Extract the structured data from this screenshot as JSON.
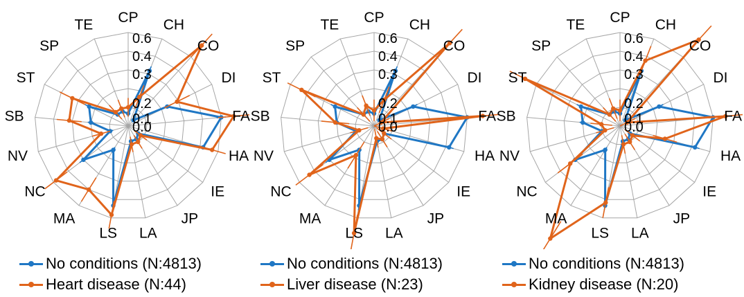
{
  "colors": {
    "baseline": "#1f77c4",
    "condition": "#e0641b",
    "grid": "#a6a6a6"
  },
  "chart_data": [
    {
      "type": "radar",
      "categories": [
        "CP",
        "CH",
        "CO",
        "DI",
        "FA",
        "HA",
        "IE",
        "JP",
        "LA",
        "LS",
        "MA",
        "NC",
        "NV",
        "SB",
        "ST",
        "SP",
        "TE"
      ],
      "radial_ticks": [
        "0.0",
        "0.1",
        "0.2",
        "0.3",
        "0.4",
        "0.6"
      ],
      "grid": true,
      "legend_position": "bottom",
      "series": [
        {
          "name": "No conditions (N:4813)",
          "values": [
            0.08,
            0.38,
            0.05,
            0.28,
            0.6,
            0.5,
            0.08,
            0.1,
            0.1,
            0.52,
            0.18,
            0.36,
            0.12,
            0.24,
            0.28,
            0.1,
            0.1
          ],
          "errors": [
            0.02,
            0.03,
            0.01,
            0.03,
            0.03,
            0.03,
            0.02,
            0.02,
            0.02,
            0.03,
            0.02,
            0.03,
            0.02,
            0.02,
            0.03,
            0.02,
            0.02
          ]
        },
        {
          "name": "Heart disease (N:44)",
          "values": [
            0.12,
            0.2,
            0.7,
            0.35,
            0.68,
            0.56,
            0.1,
            0.12,
            0.12,
            0.58,
            0.48,
            0.58,
            0.18,
            0.38,
            0.4,
            0.12,
            0.12
          ],
          "errors": [
            0.06,
            0.08,
            0.1,
            0.09,
            0.1,
            0.09,
            0.05,
            0.05,
            0.05,
            0.09,
            0.09,
            0.09,
            0.06,
            0.08,
            0.09,
            0.06,
            0.06
          ]
        }
      ]
    },
    {
      "type": "radar",
      "categories": [
        "CP",
        "CH",
        "CO",
        "DI",
        "FA",
        "HA",
        "IE",
        "JP",
        "LA",
        "LS",
        "MA",
        "NC",
        "NV",
        "SB",
        "ST",
        "SP",
        "TE"
      ],
      "radial_ticks": [
        "0.0",
        "0.1",
        "0.2",
        "0.3",
        "0.4",
        "0.6"
      ],
      "grid": true,
      "legend_position": "bottom",
      "series": [
        {
          "name": "No conditions (N:4813)",
          "values": [
            0.08,
            0.38,
            0.05,
            0.28,
            0.6,
            0.5,
            0.08,
            0.1,
            0.1,
            0.52,
            0.18,
            0.36,
            0.12,
            0.24,
            0.28,
            0.1,
            0.1
          ],
          "errors": [
            0.02,
            0.03,
            0.01,
            0.03,
            0.03,
            0.03,
            0.02,
            0.02,
            0.02,
            0.03,
            0.02,
            0.03,
            0.02,
            0.02,
            0.03,
            0.02,
            0.02
          ]
        },
        {
          "name": "Liver disease (N:23)",
          "values": [
            0.1,
            0.18,
            0.72,
            0.05,
            0.7,
            0.06,
            0.08,
            0.1,
            0.08,
            0.7,
            0.22,
            0.52,
            0.1,
            0.25,
            0.52,
            0.1,
            0.14
          ],
          "errors": [
            0.07,
            0.09,
            0.12,
            0.06,
            0.11,
            0.06,
            0.06,
            0.06,
            0.06,
            0.12,
            0.1,
            0.11,
            0.06,
            0.09,
            0.1,
            0.06,
            0.07
          ]
        }
      ]
    },
    {
      "type": "radar",
      "categories": [
        "CP",
        "CH",
        "CO",
        "DI",
        "FA",
        "HA",
        "IE",
        "JP",
        "LA",
        "LS",
        "MA",
        "NC",
        "NV",
        "SB",
        "ST",
        "SP",
        "TE"
      ],
      "radial_ticks": [
        "0.0",
        "0.1",
        "0.2",
        "0.3",
        "0.4",
        "0.6"
      ],
      "grid": true,
      "legend_position": "bottom",
      "series": [
        {
          "name": "No conditions (N:4813)",
          "values": [
            0.08,
            0.38,
            0.05,
            0.28,
            0.6,
            0.5,
            0.08,
            0.1,
            0.1,
            0.52,
            0.18,
            0.36,
            0.12,
            0.24,
            0.28,
            0.1,
            0.1
          ],
          "errors": [
            0.02,
            0.03,
            0.01,
            0.03,
            0.03,
            0.03,
            0.02,
            0.02,
            0.02,
            0.03,
            0.02,
            0.03,
            0.02,
            0.02,
            0.03,
            0.02,
            0.02
          ]
        },
        {
          "name": "Kidney disease (N:20)",
          "values": [
            0.1,
            0.45,
            0.75,
            0.05,
            0.68,
            0.3,
            0.1,
            0.12,
            0.12,
            0.5,
            0.85,
            0.4,
            0.1,
            0.12,
            0.68,
            0.1,
            0.12
          ],
          "errors": [
            0.07,
            0.1,
            0.12,
            0.06,
            0.11,
            0.08,
            0.06,
            0.06,
            0.06,
            0.1,
            0.13,
            0.1,
            0.06,
            0.07,
            0.11,
            0.06,
            0.07
          ]
        }
      ]
    }
  ]
}
